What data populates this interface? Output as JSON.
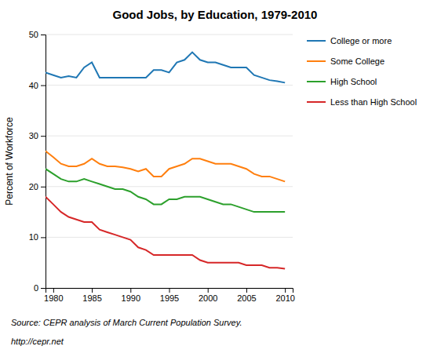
{
  "chart_data": {
    "type": "line",
    "title": "Good Jobs, by Education, 1979-2010",
    "ylabel": "Percent of Workforce",
    "x": [
      1979,
      1980,
      1981,
      1982,
      1983,
      1984,
      1985,
      1986,
      1987,
      1988,
      1989,
      1990,
      1991,
      1992,
      1993,
      1994,
      1995,
      1996,
      1997,
      1998,
      1999,
      2000,
      2001,
      2002,
      2003,
      2004,
      2005,
      2006,
      2007,
      2008,
      2009,
      2010
    ],
    "series": [
      {
        "name": "College or more",
        "values": [
          42.5,
          42.0,
          41.5,
          41.8,
          41.5,
          43.5,
          44.5,
          41.5,
          41.5,
          41.5,
          41.5,
          41.5,
          41.5,
          41.5,
          43.0,
          43.0,
          42.5,
          44.5,
          45.0,
          46.5,
          45.0,
          44.5,
          44.5,
          44.0,
          43.5,
          43.5,
          43.5,
          42.0,
          41.5,
          41.0,
          40.8,
          40.5
        ]
      },
      {
        "name": "Some College",
        "values": [
          27.0,
          25.8,
          24.5,
          24.0,
          24.0,
          24.5,
          25.5,
          24.5,
          24.0,
          24.0,
          23.8,
          23.5,
          23.0,
          23.5,
          22.0,
          22.0,
          23.5,
          24.0,
          24.5,
          25.5,
          25.5,
          25.0,
          24.5,
          24.5,
          24.5,
          24.0,
          23.5,
          22.5,
          22.0,
          22.0,
          21.5,
          21.0
        ]
      },
      {
        "name": "High School",
        "values": [
          23.5,
          22.5,
          21.5,
          21.0,
          21.0,
          21.5,
          21.0,
          20.5,
          20.0,
          19.5,
          19.5,
          19.0,
          18.0,
          17.5,
          16.5,
          16.5,
          17.5,
          17.5,
          18.0,
          18.0,
          18.0,
          17.5,
          17.0,
          16.5,
          16.5,
          16.0,
          15.5,
          15.0,
          15.0,
          15.0,
          15.0,
          15.0
        ]
      },
      {
        "name": "Less than High School",
        "values": [
          18.0,
          16.5,
          15.0,
          14.0,
          13.5,
          13.0,
          13.0,
          11.5,
          11.0,
          10.5,
          10.0,
          9.5,
          8.0,
          7.5,
          6.5,
          6.5,
          6.5,
          6.5,
          6.5,
          6.5,
          5.5,
          5.0,
          5.0,
          5.0,
          5.0,
          5.0,
          4.5,
          4.5,
          4.5,
          4.0,
          4.0,
          3.8
        ]
      }
    ],
    "xlim": [
      1979,
      2011
    ],
    "ylim": [
      0,
      50
    ],
    "xticks": [
      1980,
      1985,
      1990,
      1995,
      2000,
      2005,
      2010
    ],
    "yticks": [
      0,
      10,
      20,
      30,
      40,
      50
    ],
    "grid": true,
    "legend": "right",
    "annotations": [
      "Source: CEPR analysis of March Current Population Survey.",
      "http://cepr.net"
    ]
  }
}
